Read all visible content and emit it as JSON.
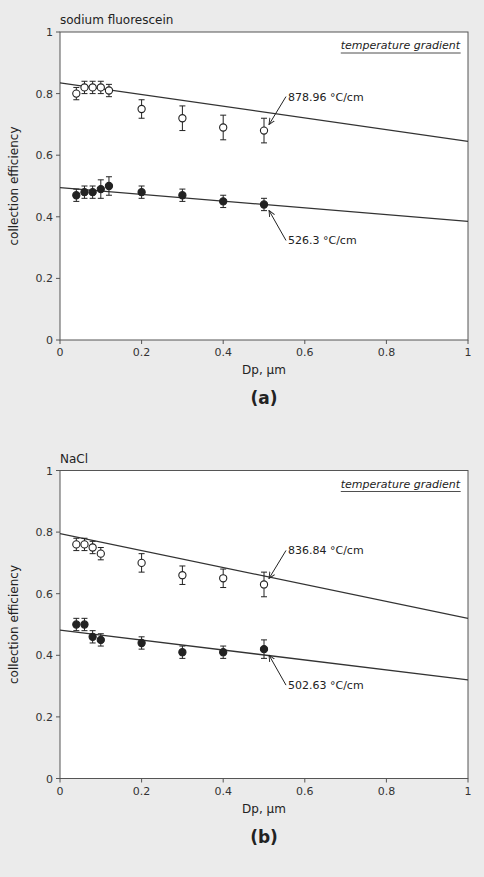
{
  "chart_data": [
    {
      "type": "scatter",
      "title": "sodium fluorescein",
      "x_label": "Dp, μm",
      "y_label": "collection efficiency",
      "annotations": [
        "temperature gradient",
        "(a)"
      ],
      "xlim": [
        0,
        1
      ],
      "ylim": [
        0,
        1
      ],
      "xticks": [
        0,
        0.2,
        0.4,
        0.6,
        0.8,
        1
      ],
      "yticks": [
        0,
        0.2,
        0.4,
        0.6,
        0.8,
        1
      ],
      "grid": false,
      "series": [
        {
          "type": "line",
          "color": "#333333",
          "x": [
            0.0,
            1.0
          ],
          "values": [
            0.835,
            0.645
          ]
        },
        {
          "type": "line",
          "color": "#333333",
          "x": [
            0.0,
            1.0
          ],
          "values": [
            0.495,
            0.385
          ]
        },
        {
          "type": "scatter",
          "name": "878.96 °C/cm",
          "color": "#222222",
          "marker": "circle-open",
          "x": [
            0.04,
            0.06,
            0.08,
            0.1,
            0.12,
            0.2,
            0.3,
            0.4,
            0.5
          ],
          "values": [
            0.8,
            0.82,
            0.82,
            0.82,
            0.81,
            0.75,
            0.72,
            0.69,
            0.68
          ],
          "errors": [
            0.02,
            0.02,
            0.02,
            0.02,
            0.02,
            0.03,
            0.04,
            0.04,
            0.04
          ]
        },
        {
          "type": "scatter",
          "name": "526.3 °C/cm",
          "color": "#222222",
          "marker": "circle",
          "x": [
            0.04,
            0.06,
            0.08,
            0.1,
            0.12,
            0.2,
            0.3,
            0.4,
            0.5
          ],
          "values": [
            0.47,
            0.48,
            0.48,
            0.49,
            0.5,
            0.48,
            0.47,
            0.45,
            0.44
          ],
          "errors": [
            0.02,
            0.02,
            0.02,
            0.03,
            0.03,
            0.02,
            0.02,
            0.02,
            0.02
          ]
        }
      ]
    },
    {
      "type": "scatter",
      "title": "NaCl",
      "x_label": "Dp, μm",
      "y_label": "collection efficiency",
      "annotations": [
        "temperature gradient",
        "(b)"
      ],
      "xlim": [
        0,
        1
      ],
      "ylim": [
        0,
        1
      ],
      "xticks": [
        0,
        0.2,
        0.4,
        0.6,
        0.8,
        1
      ],
      "yticks": [
        0,
        0.2,
        0.4,
        0.6,
        0.8,
        1
      ],
      "grid": false,
      "series": [
        {
          "type": "line",
          "color": "#333333",
          "x": [
            0.0,
            1.0
          ],
          "values": [
            0.795,
            0.52
          ]
        },
        {
          "type": "line",
          "color": "#333333",
          "x": [
            0.0,
            1.0
          ],
          "values": [
            0.482,
            0.32
          ]
        },
        {
          "type": "scatter",
          "name": "836.84 °C/cm",
          "color": "#222222",
          "marker": "circle-open",
          "x": [
            0.04,
            0.06,
            0.08,
            0.1,
            0.2,
            0.3,
            0.4,
            0.5
          ],
          "values": [
            0.76,
            0.76,
            0.75,
            0.73,
            0.7,
            0.66,
            0.65,
            0.63
          ],
          "errors": [
            0.02,
            0.02,
            0.02,
            0.02,
            0.03,
            0.03,
            0.03,
            0.04
          ]
        },
        {
          "type": "scatter",
          "name": "502.63 °C/cm",
          "color": "#222222",
          "marker": "circle",
          "x": [
            0.04,
            0.06,
            0.08,
            0.1,
            0.2,
            0.3,
            0.4,
            0.5
          ],
          "values": [
            0.5,
            0.5,
            0.46,
            0.45,
            0.44,
            0.41,
            0.41,
            0.42
          ],
          "errors": [
            0.02,
            0.02,
            0.02,
            0.02,
            0.02,
            0.02,
            0.02,
            0.03
          ]
        }
      ]
    }
  ]
}
